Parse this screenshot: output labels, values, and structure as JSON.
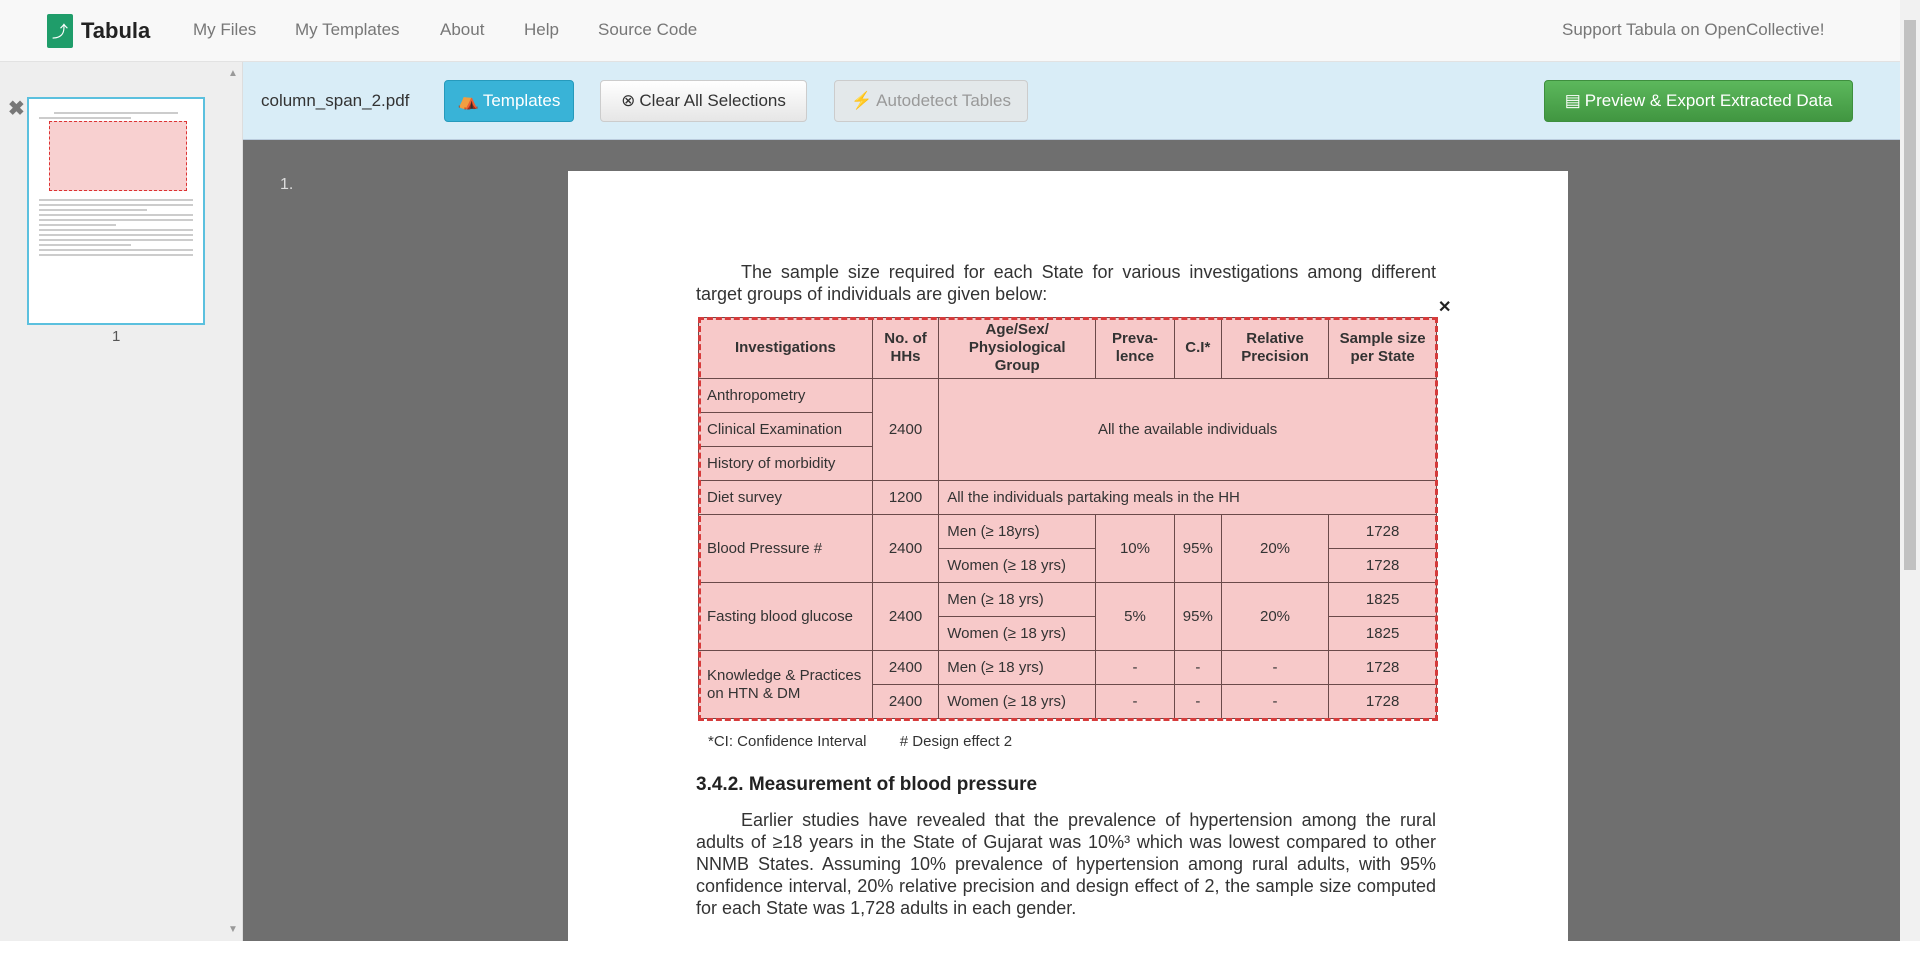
{
  "nav": {
    "brand": "Tabula",
    "items": [
      "My Files",
      "My Templates",
      "About",
      "Help",
      "Source Code"
    ],
    "support": "Support Tabula on OpenCollective!"
  },
  "sidebar": {
    "page_label": "1"
  },
  "toolbar": {
    "filename": "column_span_2.pdf",
    "templates": "Templates",
    "clear": "Clear All Selections",
    "autodetect": "Autodetect Tables",
    "export": "Preview & Export Extracted Data"
  },
  "colors": {
    "templates": "#39b3d7",
    "export": "#47a447",
    "toolbar_bg": "#d9edf7",
    "selection": "#d63b3b"
  },
  "document": {
    "page_number": "1.",
    "intro": "The sample size required for each State for various investigations among different target groups of individuals are given below:",
    "headers": [
      "Investigations",
      "No. of HHs",
      "Age/Sex/ Physiological Group",
      "Preva- lence",
      "C.I*",
      "Relative Precision",
      "Sample size per State"
    ],
    "rows": {
      "anthro": "Anthropometry",
      "clinical": "Clinical Examination",
      "history": "History of morbidity",
      "hh2400": "2400",
      "all_avail": "All the available individuals",
      "diet": "Diet survey",
      "diet_hh": "1200",
      "diet_group": "All the individuals partaking meals in the HH",
      "bp": "Blood Pressure #",
      "bp_hh": "2400",
      "bp_men": "Men (≥ 18yrs)",
      "bp_women": "Women (≥ 18 yrs)",
      "bp_prev": "10%",
      "bp_ci": "95%",
      "bp_rp": "20%",
      "bp_s1": "1728",
      "bp_s2": "1728",
      "fbg": "Fasting blood glucose",
      "fbg_hh": "2400",
      "fbg_men": "Men (≥ 18 yrs)",
      "fbg_women": "Women (≥ 18 yrs)",
      "fbg_prev": "5%",
      "fbg_ci": "95%",
      "fbg_rp": "20%",
      "fbg_s1": "1825",
      "fbg_s2": "1825",
      "kp": "Knowledge & Practices on HTN & DM",
      "kp_hh1": "2400",
      "kp_men": "Men (≥ 18 yrs)",
      "kp_hh2": "2400",
      "kp_women": "Women (≥ 18 yrs)",
      "dash": "-",
      "kp_s1": "1728",
      "kp_s2": "1728"
    },
    "footnote": "*CI: Confidence Interval        # Design effect 2",
    "heading": "3.4.2. Measurement of blood pressure",
    "body": "Earlier studies have revealed that the prevalence of hypertension among the rural adults of ≥18 years in the State of Gujarat was 10%³ which was lowest compared to other NNMB States. Assuming 10% prevalence of hypertension among rural adults, with 95% confidence interval, 20% relative precision and design effect of 2, the sample size computed for each State was 1,728 adults in each gender."
  }
}
